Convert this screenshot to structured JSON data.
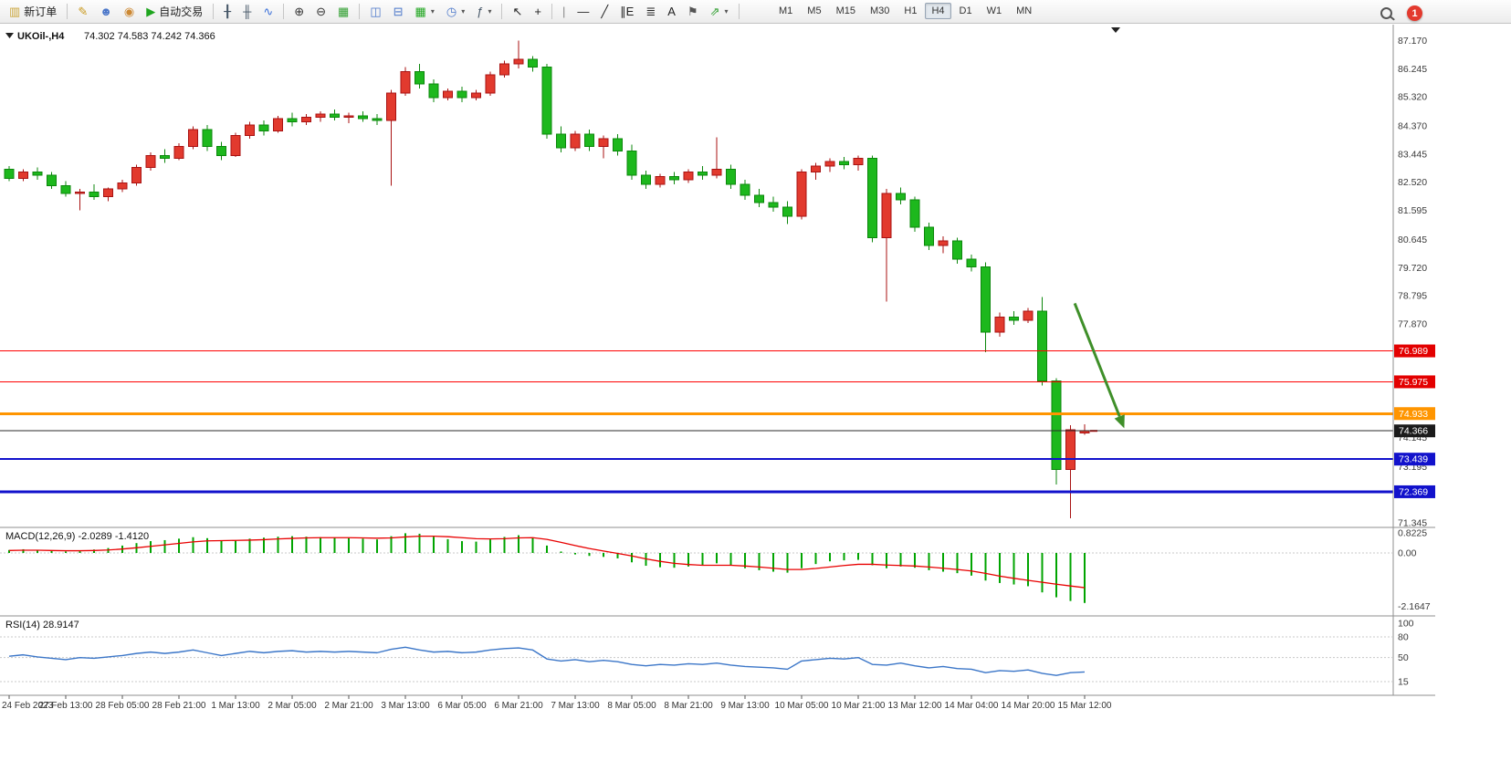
{
  "toolbar": {
    "items": [
      {
        "type": "labelbtn",
        "name": "new-order-button",
        "glyph": "▥",
        "glyph_color": "#caa53a",
        "label": "新订单"
      },
      {
        "type": "sep"
      },
      {
        "type": "iconbtn",
        "name": "metaeditor-button",
        "glyph": "✎",
        "glyph_color": "#c9991e"
      },
      {
        "type": "iconbtn",
        "name": "mql5-community-button",
        "glyph": "☻",
        "glyph_color": "#4a76c9"
      },
      {
        "type": "iconbtn",
        "name": "alerts-button",
        "glyph": "◉",
        "glyph_color": "#cc8833"
      },
      {
        "type": "labelbtn",
        "name": "autotrading-button",
        "glyph": "▶",
        "glyph_color": "#1ea51e",
        "label": "自动交易"
      },
      {
        "type": "sep"
      },
      {
        "type": "iconbtn",
        "name": "bar-chart-button",
        "glyph": "╂",
        "glyph_color": "#445566"
      },
      {
        "type": "iconbtn",
        "name": "candlestick-chart-button",
        "glyph": "╫",
        "glyph_color": "#445566"
      },
      {
        "type": "iconbtn",
        "name": "line-chart-button",
        "glyph": "∿",
        "glyph_color": "#3a6fd8"
      },
      {
        "type": "sep"
      },
      {
        "type": "iconbtn",
        "name": "zoom-in-button",
        "glyph": "⊕",
        "glyph_color": "#333333"
      },
      {
        "type": "iconbtn",
        "name": "zoom-out-button",
        "glyph": "⊖",
        "glyph_color": "#333333"
      },
      {
        "type": "iconbtn",
        "name": "tile-windows-button",
        "glyph": "▦",
        "glyph_color": "#2f9e2f"
      },
      {
        "type": "sep"
      },
      {
        "type": "iconbtn",
        "name": "cascade-windows-button",
        "glyph": "◫",
        "glyph_color": "#4a76c9"
      },
      {
        "type": "iconbtn",
        "name": "arrange-windows-button",
        "glyph": "⊟",
        "glyph_color": "#4a76c9"
      },
      {
        "type": "dropbtn",
        "name": "new-chart-button",
        "glyph": "▦",
        "glyph_color": "#1ea51e"
      },
      {
        "type": "dropbtn",
        "name": "profiles-button",
        "glyph": "◷",
        "glyph_color": "#4a76c9"
      },
      {
        "type": "dropbtn",
        "name": "indicator-list-button",
        "glyph": "ƒ",
        "glyph_color": "#445566"
      },
      {
        "type": "sep"
      },
      {
        "type": "iconbtn",
        "name": "cursor-button",
        "glyph": "↖",
        "glyph_color": "#222222"
      },
      {
        "type": "iconbtn",
        "name": "crosshair-button",
        "glyph": "+",
        "glyph_color": "#222222"
      },
      {
        "type": "sep"
      },
      {
        "type": "iconbtn",
        "name": "vertical-line-button",
        "glyph": "|",
        "glyph_color": "#888888"
      },
      {
        "type": "iconbtn",
        "name": "horizontal-line-button",
        "glyph": "—",
        "glyph_color": "#222222"
      },
      {
        "type": "iconbtn",
        "name": "trendline-button",
        "glyph": "╱",
        "glyph_color": "#222222"
      },
      {
        "type": "iconbtn",
        "name": "equidistant-channel-button",
        "glyph": "∥E",
        "glyph_color": "#222222"
      },
      {
        "type": "iconbtn",
        "name": "fibonacci-button",
        "glyph": "≣",
        "glyph_color": "#222222"
      },
      {
        "type": "iconbtn",
        "name": "text-button",
        "glyph": "A",
        "glyph_color": "#222222"
      },
      {
        "type": "iconbtn",
        "name": "text-label-button",
        "glyph": "⚑",
        "glyph_color": "#555555"
      },
      {
        "type": "dropbtn",
        "name": "arrows-button",
        "glyph": "⇗",
        "glyph_color": "#2f9e2f"
      },
      {
        "type": "sep"
      }
    ],
    "timeframes": {
      "items": [
        "M1",
        "M5",
        "M15",
        "M30",
        "H1",
        "H4",
        "D1",
        "W1",
        "MN"
      ],
      "active": "H4"
    },
    "notification_count": "1"
  },
  "chart": {
    "symbol": "UKOil-,H4",
    "ohlc_text": "74.302 74.583 74.242 74.366"
  },
  "chart_data": {
    "type": "candlestick",
    "symbol": "UKOil-",
    "timeframe": "H4",
    "color_convention": "red = bullish (close>open), green = bearish (close<open)",
    "colors": {
      "up": "#e23a2e",
      "up_border": "#a81212",
      "down": "#1db81d",
      "down_border": "#0c870c",
      "macd_hist": "#00a400",
      "macd_signal": "#e80000",
      "rsi_line": "#3b76c8",
      "axis_text": "#3a3a3a",
      "separator": "#8f8f8f"
    },
    "current": {
      "open": 74.302,
      "high": 74.583,
      "low": 74.242,
      "close": 74.366
    },
    "price_axis": {
      "labels": [
        87.17,
        86.245,
        85.32,
        84.37,
        83.445,
        82.52,
        81.595,
        80.645,
        79.72,
        78.795,
        77.87,
        74.145,
        73.195,
        71.345
      ],
      "min": 71.2,
      "max": 87.45
    },
    "candles": [
      [
        82.95,
        83.05,
        82.55,
        82.65
      ],
      [
        82.65,
        82.95,
        82.55,
        82.85
      ],
      [
        82.85,
        83.0,
        82.6,
        82.75
      ],
      [
        82.75,
        82.85,
        82.3,
        82.4
      ],
      [
        82.4,
        82.55,
        82.05,
        82.15
      ],
      [
        82.15,
        82.3,
        81.6,
        82.2
      ],
      [
        82.2,
        82.45,
        81.95,
        82.05
      ],
      [
        82.05,
        82.35,
        81.9,
        82.3
      ],
      [
        82.3,
        82.6,
        82.2,
        82.5
      ],
      [
        82.5,
        83.1,
        82.4,
        83.0
      ],
      [
        83.0,
        83.5,
        82.9,
        83.4
      ],
      [
        83.4,
        83.6,
        83.15,
        83.3
      ],
      [
        83.3,
        83.8,
        83.25,
        83.7
      ],
      [
        83.7,
        84.35,
        83.6,
        84.25
      ],
      [
        84.25,
        84.4,
        83.55,
        83.7
      ],
      [
        83.7,
        83.85,
        83.25,
        83.4
      ],
      [
        83.4,
        84.15,
        83.35,
        84.05
      ],
      [
        84.05,
        84.5,
        83.95,
        84.4
      ],
      [
        84.4,
        84.55,
        84.05,
        84.2
      ],
      [
        84.2,
        84.7,
        84.15,
        84.6
      ],
      [
        84.6,
        84.8,
        84.35,
        84.5
      ],
      [
        84.5,
        84.75,
        84.4,
        84.65
      ],
      [
        84.65,
        84.85,
        84.5,
        84.75
      ],
      [
        84.75,
        84.9,
        84.55,
        84.65
      ],
      [
        84.65,
        84.8,
        84.45,
        84.7
      ],
      [
        84.7,
        84.85,
        84.5,
        84.6
      ],
      [
        84.6,
        84.75,
        84.4,
        84.55
      ],
      [
        84.55,
        85.55,
        82.4,
        85.45
      ],
      [
        85.45,
        86.3,
        85.35,
        86.15
      ],
      [
        86.15,
        86.4,
        85.6,
        85.75
      ],
      [
        85.75,
        85.9,
        85.15,
        85.3
      ],
      [
        85.3,
        85.6,
        85.2,
        85.5
      ],
      [
        85.5,
        85.65,
        85.15,
        85.3
      ],
      [
        85.3,
        85.55,
        85.2,
        85.45
      ],
      [
        85.45,
        86.15,
        85.35,
        86.05
      ],
      [
        86.05,
        86.5,
        85.95,
        86.4
      ],
      [
        86.4,
        87.17,
        86.25,
        86.55
      ],
      [
        86.55,
        86.65,
        86.15,
        86.3
      ],
      [
        86.3,
        86.4,
        83.95,
        84.1
      ],
      [
        84.1,
        84.35,
        83.5,
        83.65
      ],
      [
        83.65,
        84.2,
        83.55,
        84.1
      ],
      [
        84.1,
        84.25,
        83.55,
        83.7
      ],
      [
        83.7,
        84.05,
        83.3,
        83.95
      ],
      [
        83.95,
        84.1,
        83.4,
        83.55
      ],
      [
        83.55,
        83.75,
        82.6,
        82.75
      ],
      [
        82.75,
        82.9,
        82.3,
        82.45
      ],
      [
        82.45,
        82.8,
        82.35,
        82.7
      ],
      [
        82.7,
        82.85,
        82.45,
        82.6
      ],
      [
        82.6,
        82.95,
        82.5,
        82.85
      ],
      [
        82.85,
        83.05,
        82.6,
        82.75
      ],
      [
        82.75,
        84.0,
        82.65,
        82.95
      ],
      [
        82.95,
        83.1,
        82.3,
        82.45
      ],
      [
        82.45,
        82.6,
        81.95,
        82.1
      ],
      [
        82.1,
        82.3,
        81.7,
        81.85
      ],
      [
        81.85,
        82.05,
        81.55,
        81.7
      ],
      [
        81.7,
        81.9,
        81.15,
        81.4
      ],
      [
        81.4,
        82.95,
        81.3,
        82.85
      ],
      [
        82.85,
        83.15,
        82.6,
        83.05
      ],
      [
        83.05,
        83.3,
        82.85,
        83.2
      ],
      [
        83.2,
        83.35,
        82.95,
        83.1
      ],
      [
        83.1,
        83.4,
        82.9,
        83.3
      ],
      [
        83.3,
        83.4,
        80.55,
        80.7
      ],
      [
        80.7,
        82.3,
        78.6,
        82.15
      ],
      [
        82.15,
        82.35,
        81.8,
        81.95
      ],
      [
        81.95,
        82.05,
        80.9,
        81.05
      ],
      [
        81.05,
        81.2,
        80.3,
        80.45
      ],
      [
        80.45,
        80.75,
        80.2,
        80.6
      ],
      [
        80.6,
        80.7,
        79.85,
        80.0
      ],
      [
        80.0,
        80.15,
        79.6,
        79.75
      ],
      [
        79.75,
        79.9,
        76.95,
        77.6
      ],
      [
        77.6,
        78.25,
        77.45,
        78.1
      ],
      [
        78.1,
        78.3,
        77.85,
        78.0
      ],
      [
        78.0,
        78.4,
        77.9,
        78.3
      ],
      [
        78.3,
        78.75,
        75.85,
        76.0
      ],
      [
        76.0,
        76.1,
        72.6,
        73.1
      ],
      [
        73.1,
        74.55,
        71.5,
        74.4
      ],
      [
        74.302,
        74.583,
        74.242,
        74.366
      ]
    ],
    "time_labels": [
      "24 Feb 2023",
      "27 Feb 13:00",
      "28 Feb 05:00",
      "28 Feb 21:00",
      "1 Mar 13:00",
      "2 Mar 05:00",
      "2 Mar 21:00",
      "3 Mar 13:00",
      "6 Mar 05:00",
      "6 Mar 21:00",
      "7 Mar 13:00",
      "8 Mar 05:00",
      "8 Mar 21:00",
      "9 Mar 13:00",
      "10 Mar 05:00",
      "10 Mar 21:00",
      "13 Mar 12:00",
      "14 Mar 04:00",
      "14 Mar 20:00",
      "15 Mar 12:00"
    ],
    "label_every": 4,
    "hlines": [
      {
        "price": 76.989,
        "color": "#ff0000",
        "width": 1,
        "tag_bg": "#e30000"
      },
      {
        "price": 75.975,
        "color": "#ff0000",
        "width": 1,
        "tag_bg": "#e30000"
      },
      {
        "price": 74.933,
        "color": "#ff9500",
        "width": 3,
        "tag_bg": "#ff9500"
      },
      {
        "price": 73.439,
        "color": "#1212cc",
        "width": 2,
        "tag_bg": "#1212cc"
      },
      {
        "price": 72.369,
        "color": "#1212cc",
        "width": 3,
        "tag_bg": "#1212cc"
      }
    ],
    "current_price": {
      "price": 74.366,
      "line_color": "#2b2b2b",
      "tag_bg": "#1b1b1b"
    },
    "arrow": {
      "from": {
        "index": 75.3,
        "price": 78.55
      },
      "to": {
        "index": 78.8,
        "price": 74.45
      },
      "color": "#3f8f29"
    },
    "macd": {
      "label": "MACD(12,26,9) -2.0289 -1.4120",
      "value_main": -2.0289,
      "value_signal": -1.412,
      "scale_labels": [
        "0.8225",
        "0.00",
        "-2.1647"
      ],
      "scale": {
        "max": 0.8225,
        "zero": 0.0,
        "min": -2.1647
      },
      "hist": [
        0.12,
        0.15,
        0.12,
        0.08,
        0.06,
        0.1,
        0.14,
        0.2,
        0.3,
        0.4,
        0.48,
        0.52,
        0.58,
        0.64,
        0.6,
        0.5,
        0.52,
        0.58,
        0.62,
        0.66,
        0.68,
        0.66,
        0.64,
        0.62,
        0.6,
        0.58,
        0.55,
        0.68,
        0.8,
        0.78,
        0.66,
        0.56,
        0.48,
        0.46,
        0.55,
        0.65,
        0.72,
        0.62,
        0.3,
        0.06,
        -0.06,
        -0.12,
        -0.16,
        -0.22,
        -0.38,
        -0.52,
        -0.58,
        -0.6,
        -0.55,
        -0.5,
        -0.42,
        -0.5,
        -0.62,
        -0.7,
        -0.76,
        -0.8,
        -0.62,
        -0.45,
        -0.34,
        -0.3,
        -0.28,
        -0.5,
        -0.62,
        -0.55,
        -0.6,
        -0.7,
        -0.76,
        -0.82,
        -0.92,
        -1.12,
        -1.22,
        -1.28,
        -1.35,
        -1.6,
        -1.8,
        -1.95,
        -2.03
      ],
      "signal": [
        0.1,
        0.11,
        0.11,
        0.1,
        0.09,
        0.09,
        0.1,
        0.12,
        0.16,
        0.21,
        0.27,
        0.33,
        0.39,
        0.45,
        0.49,
        0.5,
        0.51,
        0.52,
        0.54,
        0.57,
        0.59,
        0.61,
        0.62,
        0.62,
        0.62,
        0.61,
        0.6,
        0.61,
        0.65,
        0.68,
        0.68,
        0.66,
        0.62,
        0.58,
        0.57,
        0.58,
        0.61,
        0.62,
        0.55,
        0.43,
        0.3,
        0.18,
        0.08,
        -0.02,
        -0.12,
        -0.24,
        -0.34,
        -0.42,
        -0.47,
        -0.5,
        -0.5,
        -0.5,
        -0.53,
        -0.57,
        -0.62,
        -0.67,
        -0.67,
        -0.63,
        -0.57,
        -0.51,
        -0.46,
        -0.46,
        -0.49,
        -0.51,
        -0.53,
        -0.57,
        -0.62,
        -0.67,
        -0.73,
        -0.83,
        -0.94,
        -1.03,
        -1.11,
        -1.19,
        -1.27,
        -1.34,
        -1.41
      ]
    },
    "rsi": {
      "label": "RSI(14) 28.9147",
      "value": 28.9147,
      "levels": [
        100,
        80,
        50,
        15
      ],
      "values": [
        52,
        54,
        51,
        49,
        47,
        50,
        49,
        51,
        53,
        56,
        58,
        56,
        58,
        61,
        57,
        53,
        56,
        59,
        57,
        59,
        60,
        58,
        59,
        58,
        59,
        58,
        57,
        62,
        65,
        61,
        58,
        59,
        57,
        58,
        61,
        63,
        64,
        61,
        48,
        45,
        47,
        44,
        46,
        44,
        40,
        38,
        40,
        39,
        41,
        40,
        42,
        39,
        37,
        36,
        35,
        33,
        45,
        47,
        49,
        48,
        50,
        40,
        39,
        42,
        38,
        35,
        37,
        34,
        33,
        28,
        31,
        30,
        32,
        27,
        24,
        28,
        29
      ]
    }
  }
}
